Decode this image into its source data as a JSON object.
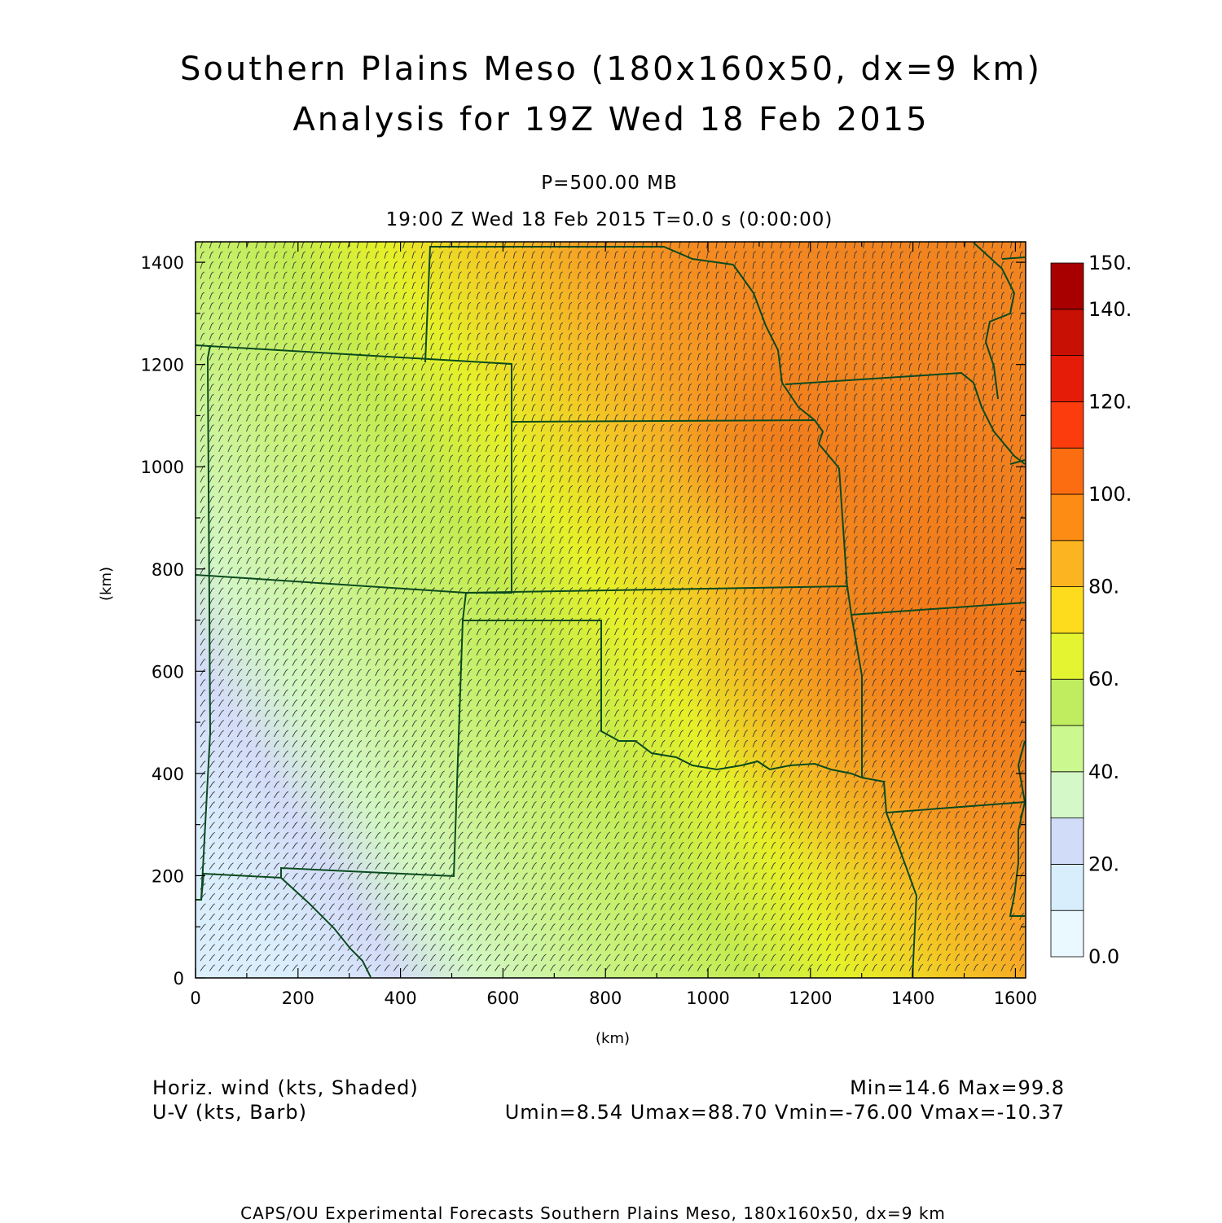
{
  "title": {
    "line1": "Southern Plains Meso (180x160x50, dx=9 km)",
    "line2": "Analysis for 19Z Wed 18 Feb 2015"
  },
  "subtitle": {
    "level": "P=500.00 MB",
    "time": "19:00 Z Wed 18 Feb 2015    T=0.0 s (0:00:00)"
  },
  "axes": {
    "xlabel": "(km)",
    "ylabel": "(km)",
    "xlim": [
      0,
      1620
    ],
    "ylim": [
      0,
      1440
    ],
    "xticks": [
      "0",
      "200",
      "400",
      "600",
      "800",
      "1000",
      "1200",
      "1400",
      "1600"
    ],
    "yticks": [
      "0",
      "200",
      "400",
      "600",
      "800",
      "1000",
      "1200",
      "1400"
    ]
  },
  "colorbar": {
    "min": 0,
    "max": 150,
    "labels": [
      "0.0",
      "20.",
      "40.",
      "60.",
      "80.",
      "100.",
      "120.",
      "140.",
      "150."
    ],
    "colors": [
      "#eaf8ff",
      "#d8eefc",
      "#d0dcf8",
      "#d4f8c8",
      "#ccf890",
      "#c0ec60",
      "#e4f430",
      "#fcdc1c",
      "#fcb420",
      "#fc8c14",
      "#fc6c10",
      "#fc3c0c",
      "#e41c08",
      "#c81004",
      "#a80000"
    ]
  },
  "chart_data": {
    "type": "heatmap",
    "variable": "Horiz. wind (kts, Shaded)",
    "overlay": "U-V (kts, Barb)",
    "units": "kts",
    "x_range_km": [
      0,
      1620
    ],
    "y_range_km": [
      0,
      1440
    ],
    "min": 14.6,
    "max": 99.8,
    "umin": 8.54,
    "umax": 88.7,
    "vmin": -76.0,
    "vmax": -10.37,
    "jet_core_center_km": [
      1400,
      600
    ],
    "jet_axis_direction": "northwest-to-southeast"
  },
  "footer": {
    "var1": "Horiz. wind (kts, Shaded)",
    "var2": "U-V (kts, Barb)",
    "stat1": "Min=14.6 Max=99.8",
    "stat2": "Umin=8.54 Umax=88.70 Vmin=-76.00 Vmax=-10.37",
    "credit": "CAPS/OU Experimental Forecasts  Southern Plains Meso, 180x160x50, dx=9 km"
  },
  "colors": {
    "state_borders": "#0a4a1e",
    "barbs": "#3a3a3a"
  }
}
